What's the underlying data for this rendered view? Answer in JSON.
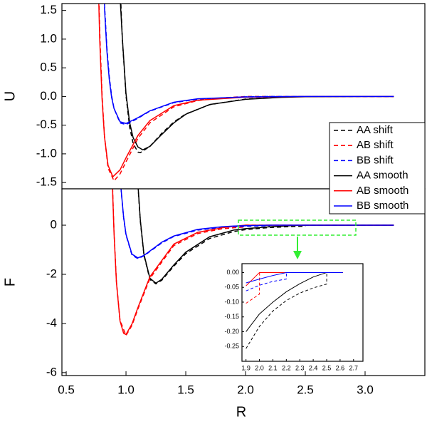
{
  "chart_data": [
    {
      "type": "line",
      "ylabel": "U",
      "xlim": [
        0.464,
        3.5
      ],
      "ylim": [
        -1.61,
        1.62
      ],
      "yticks": [
        1.5,
        {
          "value": 1,
          "label": "1.0"
        },
        0.5,
        {
          "value": 0,
          "label": "0.0"
        },
        -0.5,
        {
          "value": -1,
          "label": "-1.0"
        },
        -1.5
      ],
      "legend": "right",
      "series": [
        {
          "name": "AA shift",
          "color": "#000000",
          "dash": true,
          "x": [
            0.95,
            0.97,
            1.0,
            1.03,
            1.06,
            1.1,
            1.12,
            1.2,
            1.3,
            1.4,
            1.5,
            1.7,
            2.0,
            2.3,
            2.5,
            3.24
          ],
          "values": [
            1.98,
            0.98,
            0.016,
            -0.53,
            -0.82,
            -0.97,
            -0.98,
            -0.87,
            -0.64,
            -0.445,
            -0.304,
            -0.143,
            -0.045,
            -0.011,
            0,
            0
          ]
        },
        {
          "name": "AB shift",
          "color": "#ff0000",
          "dash": true,
          "x": [
            0.76,
            0.78,
            0.8,
            0.82,
            0.85,
            0.9,
            0.95,
            1.0,
            1.1,
            1.2,
            1.4,
            1.6,
            1.8,
            2.0,
            3.24
          ],
          "values": [
            2.95,
            1.15,
            0.02,
            -0.69,
            -1.25,
            -1.47,
            -1.35,
            -1.14,
            -0.73,
            -0.46,
            -0.18,
            -0.07,
            -0.025,
            0,
            0
          ]
        },
        {
          "name": "BB shift",
          "color": "#0000ff",
          "dash": true,
          "x": [
            0.82,
            0.84,
            0.86,
            0.88,
            0.9,
            0.95,
            1.0,
            1.1,
            1.2,
            1.4,
            1.6,
            2.0,
            2.2,
            3.24
          ],
          "values": [
            1.62,
            0.86,
            0.35,
            0.01,
            -0.21,
            -0.46,
            -0.49,
            -0.38,
            -0.255,
            -0.108,
            -0.046,
            -0.006,
            0,
            0
          ]
        },
        {
          "name": "AA smooth",
          "color": "#000000",
          "dash": false,
          "x": [
            0.95,
            0.97,
            1.0,
            1.03,
            1.06,
            1.1,
            1.14,
            1.2,
            1.3,
            1.4,
            1.5,
            1.7,
            2.0,
            2.3,
            2.5,
            3.0,
            3.24
          ],
          "values": [
            1.75,
            1.0,
            0.05,
            -0.45,
            -0.72,
            -0.88,
            -0.93,
            -0.87,
            -0.66,
            -0.46,
            -0.31,
            -0.14,
            -0.05,
            -0.015,
            -0.005,
            0,
            0
          ]
        },
        {
          "name": "AB smooth",
          "color": "#ff0000",
          "dash": false,
          "x": [
            0.76,
            0.78,
            0.8,
            0.82,
            0.85,
            0.89,
            0.95,
            1.0,
            1.1,
            1.2,
            1.4,
            1.6,
            2.0,
            2.5,
            3.0,
            3.24
          ],
          "values": [
            2.7,
            1.0,
            -0.05,
            -0.7,
            -1.2,
            -1.4,
            -1.28,
            -1.07,
            -0.68,
            -0.42,
            -0.16,
            -0.065,
            -0.012,
            0,
            0,
            0
          ]
        },
        {
          "name": "BB smooth",
          "color": "#0000ff",
          "dash": false,
          "x": [
            0.82,
            0.84,
            0.86,
            0.88,
            0.9,
            0.95,
            1.0,
            1.1,
            1.2,
            1.4,
            1.6,
            2.0,
            2.5,
            3.24
          ],
          "values": [
            1.55,
            0.8,
            0.3,
            -0.02,
            -0.21,
            -0.44,
            -0.47,
            -0.37,
            -0.25,
            -0.1,
            -0.04,
            -0.008,
            0,
            0
          ]
        }
      ]
    },
    {
      "type": "line",
      "ylabel": "F",
      "xlabel": "R",
      "xlim": [
        0.464,
        3.5
      ],
      "ylim": [
        -6.12,
        1.48
      ],
      "xticks": [
        0.5,
        {
          "value": 1,
          "label": "1.0"
        },
        1.5,
        {
          "value": 2,
          "label": "2.0"
        },
        2.5,
        {
          "value": 3,
          "label": "3.0"
        }
      ],
      "yticks": [
        0,
        -2,
        -4,
        -6
      ],
      "series": [
        {
          "color": "#000000",
          "dash": true,
          "x": [
            1.08,
            1.1,
            1.12,
            1.15,
            1.2,
            1.25,
            1.3,
            1.4,
            1.5,
            1.7,
            1.9,
            2.0,
            2.2,
            2.4,
            2.5,
            2.501,
            3.24
          ],
          "values": [
            3.65,
            1.6,
            0.15,
            -1.22,
            -2.21,
            -2.39,
            -2.24,
            -1.67,
            -1.16,
            -0.54,
            -0.26,
            -0.18,
            -0.095,
            -0.052,
            -0.039,
            0,
            0
          ]
        },
        {
          "color": "#ff0000",
          "dash": true,
          "x": [
            0.88,
            0.89,
            0.9,
            0.92,
            0.95,
            1.0,
            1.05,
            1.1,
            1.2,
            1.4,
            1.6,
            1.8,
            1.9,
            2.0,
            2.001,
            3.24
          ],
          "values": [
            2.98,
            1.17,
            -0.27,
            -2.29,
            -3.87,
            -4.49,
            -4.08,
            -3.41,
            -2.17,
            -0.83,
            -0.34,
            -0.15,
            -0.104,
            -0.073,
            0,
            0
          ]
        },
        {
          "color": "#0000ff",
          "dash": true,
          "x": [
            0.94,
            0.96,
            0.98,
            1.0,
            1.05,
            1.1,
            1.15,
            1.2,
            1.3,
            1.4,
            1.6,
            1.8,
            1.9,
            2.0,
            2.2,
            2.201,
            3.24
          ],
          "values": [
            2.98,
            1.38,
            0.31,
            -0.4,
            -1.22,
            -1.36,
            -1.25,
            -1.07,
            -0.72,
            -0.46,
            -0.2,
            -0.089,
            -0.062,
            -0.043,
            -0.022,
            0,
            0
          ]
        },
        {
          "color": "#000000",
          "dash": false,
          "x": [
            1.08,
            1.1,
            1.12,
            1.15,
            1.2,
            1.25,
            1.3,
            1.4,
            1.5,
            1.7,
            1.9,
            2.0,
            2.2,
            2.4,
            2.5,
            3.0,
            3.24
          ],
          "values": [
            3.7,
            1.65,
            0.2,
            -1.18,
            -2.16,
            -2.36,
            -2.2,
            -1.62,
            -1.1,
            -0.47,
            -0.2,
            -0.14,
            -0.065,
            -0.015,
            0,
            0,
            0
          ]
        },
        {
          "color": "#ff0000",
          "dash": false,
          "x": [
            0.88,
            0.89,
            0.9,
            0.92,
            0.95,
            0.98,
            1.0,
            1.05,
            1.1,
            1.2,
            1.4,
            1.6,
            1.8,
            1.9,
            2.0,
            3.24
          ],
          "values": [
            2.9,
            1.1,
            -0.33,
            -2.33,
            -3.9,
            -4.4,
            -4.45,
            -4.02,
            -3.35,
            -2.1,
            -0.77,
            -0.29,
            -0.11,
            -0.045,
            0,
            0
          ]
        },
        {
          "color": "#0000ff",
          "dash": false,
          "x": [
            0.94,
            0.96,
            0.98,
            1.0,
            1.05,
            1.1,
            1.15,
            1.2,
            1.3,
            1.4,
            1.6,
            1.8,
            1.9,
            2.0,
            2.1,
            2.2,
            3.24
          ],
          "values": [
            3.0,
            1.4,
            0.33,
            -0.37,
            -1.18,
            -1.33,
            -1.23,
            -1.05,
            -0.69,
            -0.44,
            -0.17,
            -0.065,
            -0.035,
            -0.022,
            -0.01,
            0,
            0
          ]
        }
      ]
    },
    {
      "type": "line",
      "xlim": [
        1.87,
        2.77
      ],
      "ylim": [
        -0.3,
        0.03
      ],
      "xticks": [
        1.9,
        {
          "value": 2,
          "label": "2.0"
        },
        2.1,
        2.2,
        2.3,
        2.4,
        2.5,
        2.6,
        2.7
      ],
      "yticks": [
        {
          "value": 0,
          "label": "0.00"
        },
        -0.05,
        {
          "value": -0.1,
          "label": "-0.10"
        },
        -0.15,
        {
          "value": -0.2,
          "label": "-0.20"
        },
        -0.25
      ],
      "series": [
        {
          "color": "#000000",
          "dash": true,
          "x": [
            1.9,
            2.0,
            2.1,
            2.2,
            2.3,
            2.4,
            2.5,
            2.501,
            2.62
          ],
          "values": [
            -0.257,
            -0.182,
            -0.13,
            -0.0945,
            -0.0695,
            -0.052,
            -0.039,
            0,
            0
          ]
        },
        {
          "color": "#ff0000",
          "dash": true,
          "x": [
            1.9,
            2.0,
            2.001,
            2.62
          ],
          "values": [
            -0.104,
            -0.073,
            0,
            0
          ]
        },
        {
          "color": "#0000ff",
          "dash": true,
          "x": [
            1.9,
            2.0,
            2.1,
            2.2,
            2.201,
            2.62
          ],
          "values": [
            -0.062,
            -0.043,
            -0.03,
            -0.022,
            0,
            0
          ]
        },
        {
          "color": "#000000",
          "dash": false,
          "x": [
            1.9,
            2.0,
            2.1,
            2.2,
            2.3,
            2.4,
            2.5,
            2.62
          ],
          "values": [
            -0.2,
            -0.14,
            -0.1,
            -0.065,
            -0.038,
            -0.015,
            0,
            0
          ]
        },
        {
          "color": "#ff0000",
          "dash": false,
          "x": [
            1.9,
            2.0,
            2.62
          ],
          "values": [
            -0.045,
            0,
            0
          ]
        },
        {
          "color": "#0000ff",
          "dash": false,
          "x": [
            1.9,
            2.0,
            2.1,
            2.2,
            2.62
          ],
          "values": [
            -0.035,
            -0.022,
            -0.01,
            0,
            0
          ]
        }
      ]
    }
  ]
}
